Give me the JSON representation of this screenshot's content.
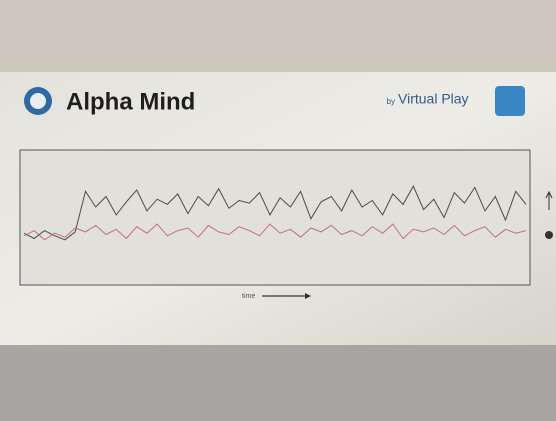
{
  "chart_data": {
    "type": "line",
    "title": "Alpha Mind",
    "brand_prefix": "by",
    "brand": "Virtual Play",
    "x_label": "time",
    "ylim": [
      0,
      100
    ],
    "series": [
      {
        "color": "#4a4a4a",
        "values": [
          38,
          34,
          40,
          36,
          33,
          39,
          70,
          58,
          66,
          52,
          62,
          71,
          55,
          64,
          60,
          68,
          53,
          66,
          59,
          72,
          57,
          63,
          61,
          69,
          52,
          65,
          58,
          70,
          49,
          62,
          66,
          55,
          71,
          58,
          63,
          52,
          68,
          60,
          74,
          56,
          64,
          50,
          69,
          61,
          73,
          55,
          66,
          48,
          70,
          60
        ]
      },
      {
        "color": "#c0707a",
        "values": [
          36,
          40,
          33,
          38,
          35,
          42,
          39,
          44,
          37,
          41,
          34,
          43,
          38,
          45,
          36,
          40,
          42,
          35,
          44,
          39,
          37,
          43,
          40,
          36,
          45,
          38,
          41,
          35,
          42,
          39,
          44,
          37,
          40,
          36,
          43,
          38,
          45,
          34,
          41,
          39,
          42,
          37,
          44,
          36,
          40,
          43,
          35,
          41,
          38,
          40
        ]
      }
    ]
  }
}
